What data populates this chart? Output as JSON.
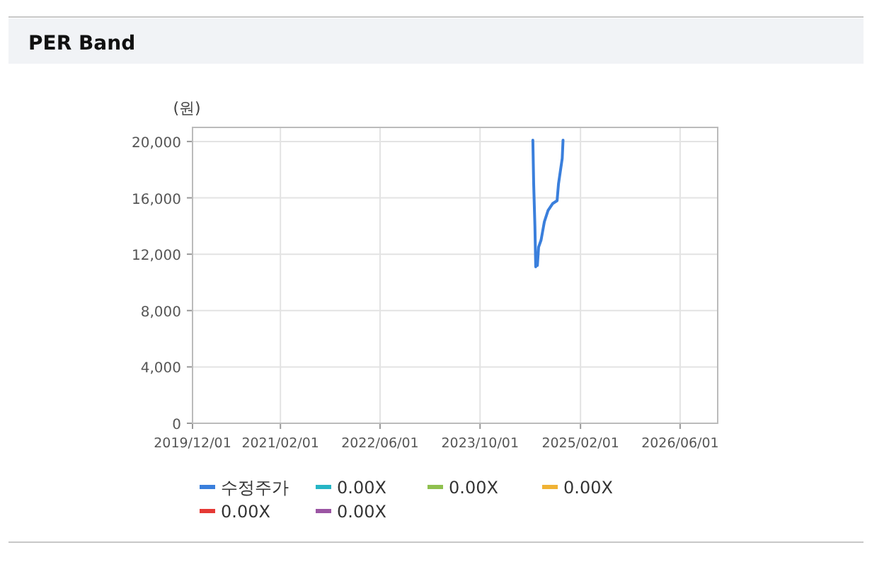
{
  "chart_data": {
    "type": "line",
    "title": "PER Band",
    "ylabel": "(원)",
    "x": [
      "2024-06-14",
      "2024-06-18",
      "2024-06-24",
      "2024-06-28",
      "2024-07-02",
      "2024-07-06",
      "2024-07-12",
      "2024-07-24",
      "2024-08-09",
      "2024-08-27",
      "2024-09-19",
      "2024-10-10",
      "2024-10-17",
      "2024-11-04",
      "2024-11-08"
    ],
    "series": [
      {
        "name": "수정주가",
        "color": "#3a7fdc",
        "values": [
          20100,
          17000,
          14000,
          11100,
          11500,
          11200,
          12500,
          13000,
          14300,
          15100,
          15600,
          15800,
          17000,
          18800,
          20100
        ]
      },
      {
        "name": "0.00X",
        "color": "#26b5c5",
        "values": [
          null,
          null,
          null,
          null,
          null,
          null,
          null,
          null,
          null,
          null,
          null,
          null,
          null,
          null,
          null
        ]
      },
      {
        "name": "0.00X",
        "color": "#8fc04f",
        "values": [
          null,
          null,
          null,
          null,
          null,
          null,
          null,
          null,
          null,
          null,
          null,
          null,
          null,
          null,
          null
        ]
      },
      {
        "name": "0.00X",
        "color": "#f0b234",
        "values": [
          null,
          null,
          null,
          null,
          null,
          null,
          null,
          null,
          null,
          null,
          null,
          null,
          null,
          null,
          null
        ]
      },
      {
        "name": "0.00X",
        "color": "#e53935",
        "values": [
          null,
          null,
          null,
          null,
          null,
          null,
          null,
          null,
          null,
          null,
          null,
          null,
          null,
          null,
          null
        ]
      },
      {
        "name": "0.00X",
        "color": "#9b55a3",
        "values": [
          null,
          null,
          null,
          null,
          null,
          null,
          null,
          null,
          null,
          null,
          null,
          null,
          null,
          null,
          null
        ]
      }
    ],
    "xlim": [
      "2019-12-01",
      "2026-12-01"
    ],
    "xticks": [
      {
        "value": "2019-12-01",
        "label": "2019/12/01"
      },
      {
        "value": "2021-02-01",
        "label": "2021/02/01"
      },
      {
        "value": "2022-06-01",
        "label": "2022/06/01"
      },
      {
        "value": "2023-10-01",
        "label": "2023/10/01"
      },
      {
        "value": "2025-02-01",
        "label": "2025/02/01"
      },
      {
        "value": "2026-06-01",
        "label": "2026/06/01"
      }
    ],
    "ylim": [
      0,
      21000
    ],
    "yticks": [
      {
        "value": 0,
        "label": "0"
      },
      {
        "value": 4000,
        "label": "4,000"
      },
      {
        "value": 8000,
        "label": "8,000"
      },
      {
        "value": 12000,
        "label": "12,000"
      },
      {
        "value": 16000,
        "label": "16,000"
      },
      {
        "value": 20000,
        "label": "20,000"
      }
    ],
    "grid": true,
    "legend": "bottom",
    "marker": "none",
    "line_style": "solid"
  }
}
